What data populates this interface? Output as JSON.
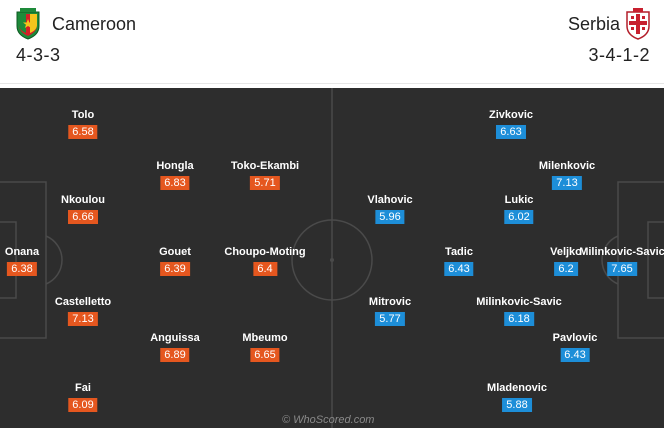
{
  "home": {
    "name": "Cameroon",
    "formation": "4-3-3",
    "color": "#e5571f",
    "players": [
      {
        "name": "Tolo",
        "rating": "6.58"
      },
      {
        "name": "Hongla",
        "rating": "6.83"
      },
      {
        "name": "Toko-Ekambi",
        "rating": "5.71"
      },
      {
        "name": "Nkoulou",
        "rating": "6.66"
      },
      {
        "name": "Onana",
        "rating": "6.38"
      },
      {
        "name": "Gouet",
        "rating": "6.39"
      },
      {
        "name": "Choupo-Moting",
        "rating": "6.4"
      },
      {
        "name": "Castelletto",
        "rating": "7.13"
      },
      {
        "name": "Anguissa",
        "rating": "6.89"
      },
      {
        "name": "Mbeumo",
        "rating": "6.65"
      },
      {
        "name": "Fai",
        "rating": "6.09"
      }
    ]
  },
  "away": {
    "name": "Serbia",
    "formation": "3-4-1-2",
    "color": "#1d8ed8",
    "players": [
      {
        "name": "Zivkovic",
        "rating": "6.63"
      },
      {
        "name": "Milenkovic",
        "rating": "7.13"
      },
      {
        "name": "Vlahovic",
        "rating": "5.96"
      },
      {
        "name": "Lukic",
        "rating": "6.02"
      },
      {
        "name": "Tadic",
        "rating": "6.43"
      },
      {
        "name": "Veljko",
        "rating": "6.2"
      },
      {
        "name": "Milinkovic-Savic",
        "rating": "7.65"
      },
      {
        "name": "Mitrovic",
        "rating": "5.77"
      },
      {
        "name": "Milinkovic-Savic",
        "rating": "6.18"
      },
      {
        "name": "Pavlovic",
        "rating": "6.43"
      },
      {
        "name": "Mladenovic",
        "rating": "5.88"
      }
    ]
  },
  "watermark": "© WhoScored.com"
}
